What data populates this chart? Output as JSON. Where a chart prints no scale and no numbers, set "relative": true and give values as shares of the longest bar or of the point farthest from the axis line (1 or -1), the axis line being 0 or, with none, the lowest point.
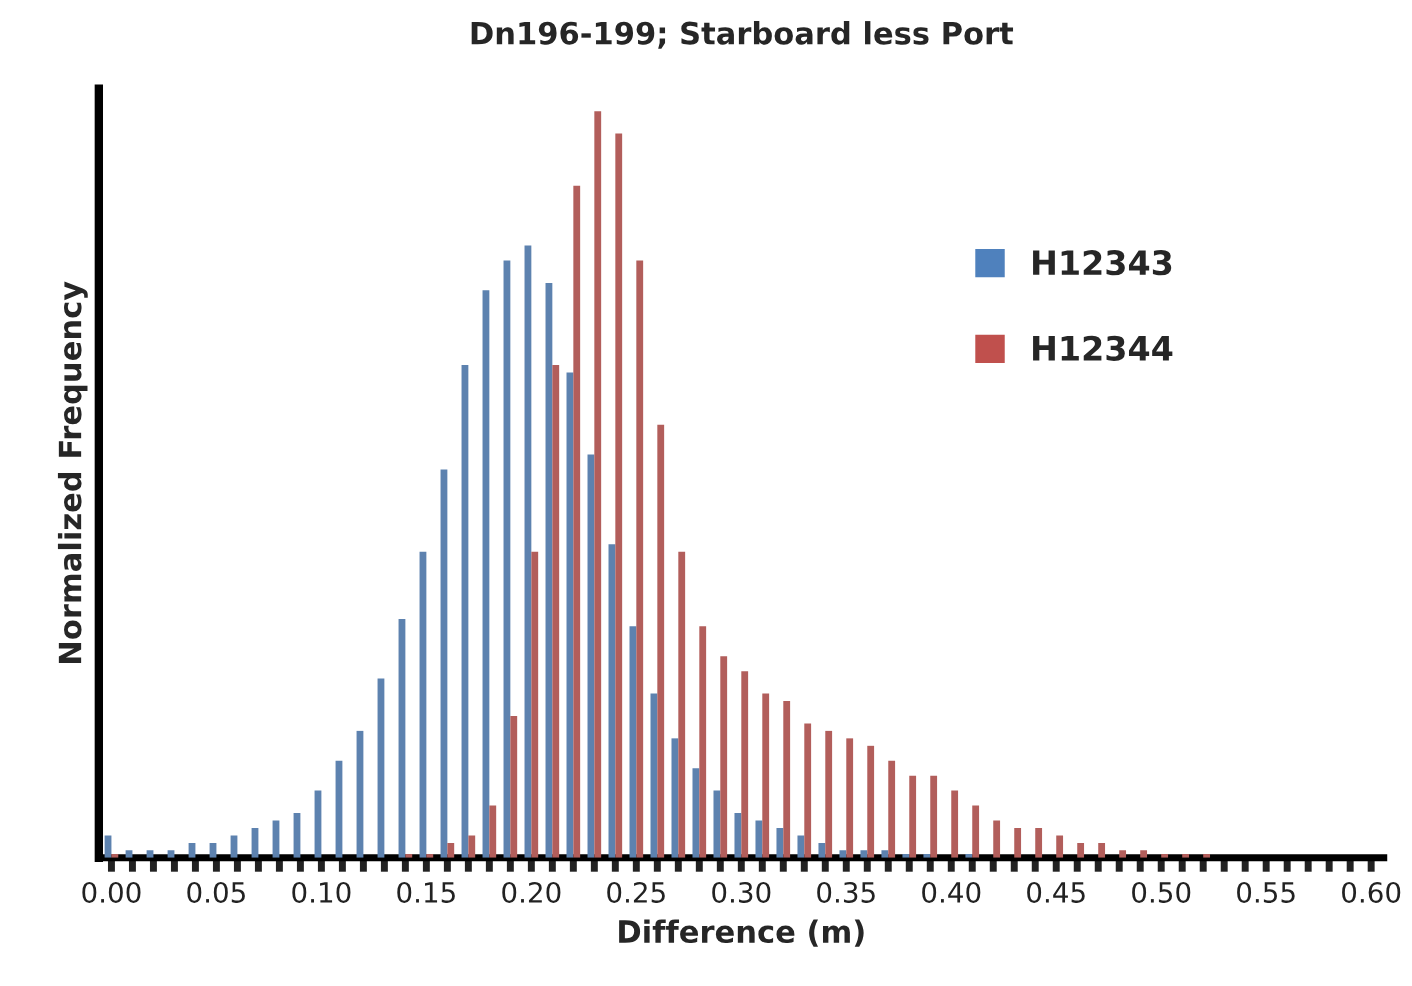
{
  "chart_data": {
    "type": "bar",
    "title": "Dn196-199; Starboard less Port",
    "xlabel": "Difference (m)",
    "ylabel": "Normalized Frequency",
    "relative": true,
    "legend": "top right",
    "grid": false,
    "categories": [
      "0.00",
      null,
      null,
      null,
      null,
      "0.05",
      null,
      null,
      null,
      null,
      "0.10",
      null,
      null,
      null,
      null,
      "0.15",
      null,
      null,
      null,
      null,
      "0.20",
      null,
      null,
      null,
      null,
      "0.25",
      null,
      null,
      null,
      null,
      "0.30",
      null,
      null,
      null,
      null,
      "0.35",
      null,
      null,
      null,
      null,
      "0.40",
      null,
      null,
      null,
      null,
      "0.45",
      null,
      null,
      null,
      null,
      "0.50",
      null,
      null,
      null,
      null,
      "0.55",
      null,
      null,
      null,
      null,
      "0.60"
    ],
    "series": [
      {
        "name": "H12343",
        "color": "#4f81bd",
        "values": [
          0.03,
          0.01,
          0.01,
          0.01,
          0.02,
          0.02,
          0.03,
          0.04,
          0.05,
          0.06,
          0.09,
          0.13,
          0.17,
          0.24,
          0.32,
          0.41,
          0.52,
          0.66,
          0.76,
          0.8,
          0.82,
          0.77,
          0.65,
          0.54,
          0.42,
          0.31,
          0.22,
          0.16,
          0.12,
          0.09,
          0.06,
          0.05,
          0.04,
          0.03,
          0.02,
          0.01,
          0.01,
          0.01,
          0.005,
          0.005,
          0,
          0.005,
          0,
          0,
          0,
          0,
          0,
          0,
          0,
          0,
          0,
          0,
          0,
          0,
          0,
          0,
          0,
          0,
          0,
          0,
          0
        ]
      },
      {
        "name": "H12344",
        "color": "#c0504d",
        "values": [
          0.005,
          0,
          0,
          0,
          0,
          0,
          0,
          0,
          0,
          0,
          0,
          0,
          0,
          0,
          0.005,
          0.005,
          0.02,
          0.03,
          0.07,
          0.19,
          0.41,
          0.66,
          0.9,
          1,
          0.97,
          0.8,
          0.58,
          0.41,
          0.31,
          0.27,
          0.25,
          0.22,
          0.21,
          0.18,
          0.17,
          0.16,
          0.15,
          0.13,
          0.11,
          0.11,
          0.09,
          0.07,
          0.05,
          0.04,
          0.04,
          0.03,
          0.02,
          0.02,
          0.01,
          0.01,
          0.005,
          0.005,
          0.005,
          0,
          0,
          0,
          0,
          0,
          0,
          0,
          0
        ]
      }
    ]
  }
}
